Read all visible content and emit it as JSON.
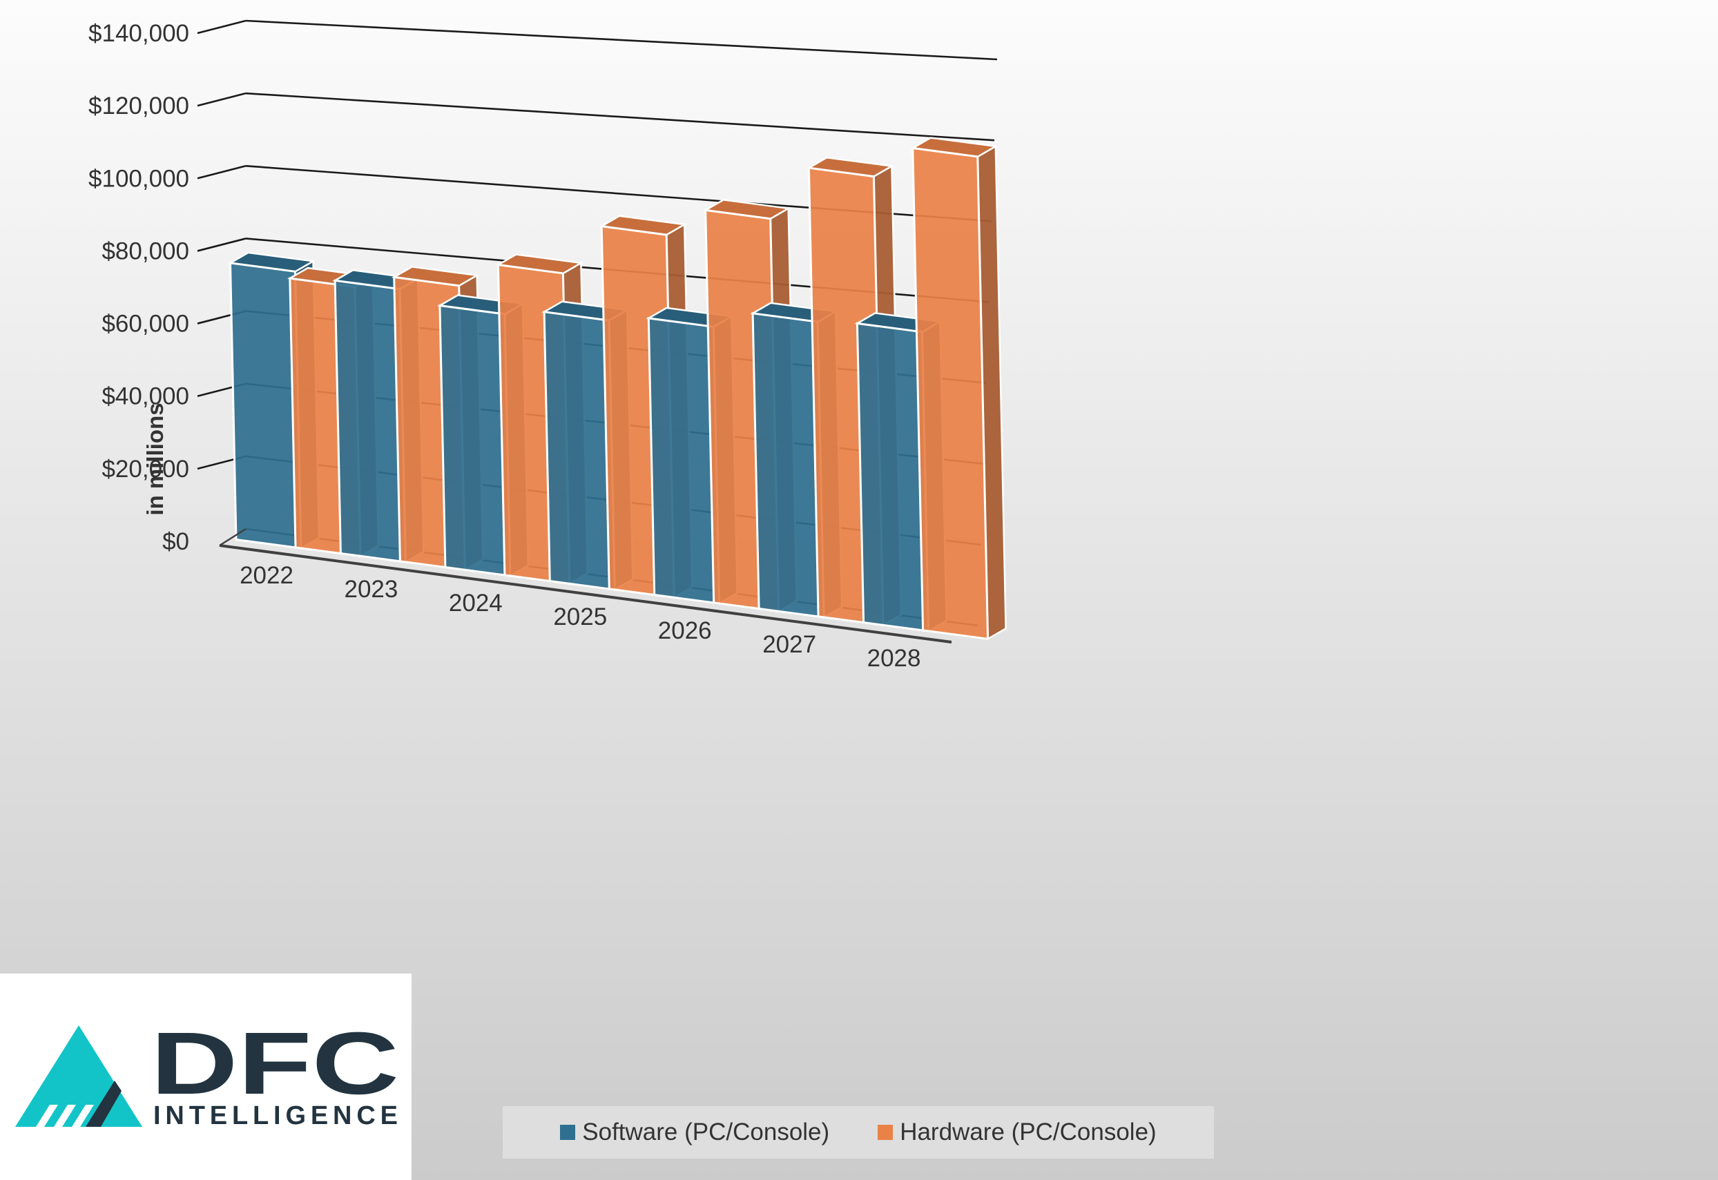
{
  "chart_data": {
    "type": "bar",
    "style": "3d-clustered",
    "categories": [
      "2022",
      "2023",
      "2024",
      "2025",
      "2026",
      "2027",
      "2028"
    ],
    "series": [
      {
        "name": "Software (PC/Console)",
        "color": "#2f6f8f",
        "values": [
          74000,
          73000,
          70000,
          72000,
          74000,
          79000,
          80000
        ]
      },
      {
        "name": "Hardware (PC/Console)",
        "color": "#ea8147",
        "values": [
          72000,
          76000,
          83000,
          97000,
          105000,
          120000,
          129000
        ]
      }
    ],
    "title": "",
    "xlabel": "",
    "ylabel": "in millions",
    "ylim": [
      0,
      140000
    ],
    "yticks": [
      "$0",
      "$20,000",
      "$40,000",
      "$60,000",
      "$80,000",
      "$100,000",
      "$120,000",
      "$140,000"
    ],
    "grid": true,
    "legend_position": "bottom"
  },
  "logo": {
    "name": "DFC INTELLIGENCE",
    "word_main": "DFC",
    "word_sub": "INTELLIGENCE",
    "accent_color": "#12c4c8",
    "dark_color": "#233440"
  }
}
